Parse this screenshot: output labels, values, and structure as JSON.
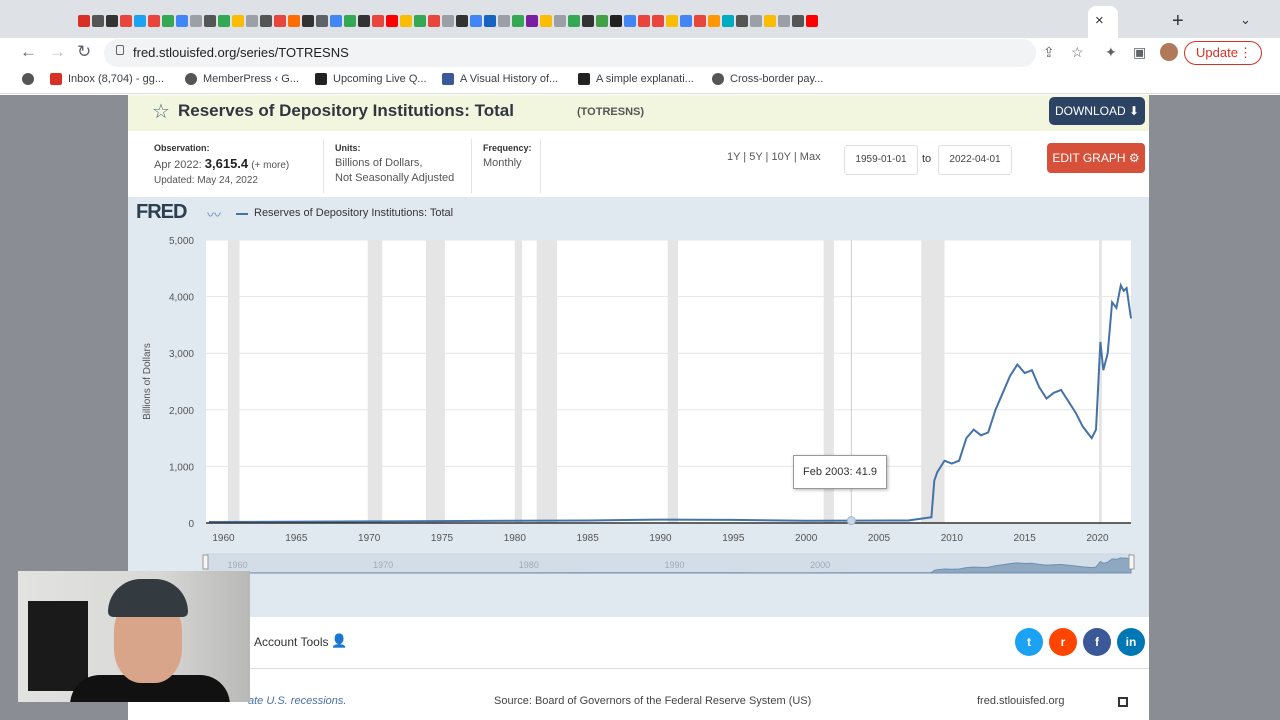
{
  "browser": {
    "url": "fred.stlouisfed.org/series/TOTRESNS",
    "update_label": "Update",
    "update_dots": "⋮",
    "tab_close": "×",
    "new_tab": "+",
    "tab_icons": [
      "#d93025",
      "#555",
      "#333",
      "#e8453c",
      "#1da1f2",
      "#e8453c",
      "#34a853",
      "#4285f4",
      "#9aa0a6",
      "#555",
      "#34a853",
      "#fbbc04",
      "#9aa0a6",
      "#555",
      "#e8453c",
      "#ff6d00",
      "#333",
      "#5f6368",
      "#4285f4",
      "#34a853",
      "#333",
      "#e8453c",
      "#ff0000",
      "#fbbc04",
      "#34a853",
      "#e8453c",
      "#9aa0a6",
      "#333",
      "#4285f4",
      "#1565c0",
      "#9aa0a6",
      "#34a853",
      "#7b1fa2",
      "#fbbc04",
      "#9aa0a6",
      "#34a853",
      "#333",
      "#43a047",
      "#222",
      "#4285f4",
      "#e8453c",
      "#e8453c",
      "#fbbc04",
      "#4285f4",
      "#e8453c",
      "#ff9800",
      "#00acc1",
      "#555",
      "#9aa0a6",
      "#fbbc04",
      "#9aa0a6",
      "#555",
      "#ff0000"
    ]
  },
  "bookmarks": [
    {
      "label": "Inbox (8,704) - gg...",
      "color": "#d93025"
    },
    {
      "label": "MemberPress ‹ G...",
      "color": "#555"
    },
    {
      "label": "Upcoming Live Q...",
      "color": "#222"
    },
    {
      "label": "A Visual History of...",
      "color": "#3b5998"
    },
    {
      "label": "A simple explanati...",
      "color": "#222"
    },
    {
      "label": "Cross-border pay...",
      "color": "#555"
    }
  ],
  "header": {
    "title": "Reserves of Depository Institutions: Total",
    "series_id": "(TOTRESNS)",
    "download_label": "DOWNLOAD ⬇"
  },
  "meta": {
    "observation_label": "Observation:",
    "observation_period": "Apr 2022:",
    "observation_value": "3,615.4",
    "observation_more": "(+ more)",
    "updated": "Updated: May 24, 2022",
    "units_label": "Units:",
    "units_line1": "Billions of Dollars,",
    "units_line2": "Not Seasonally Adjusted",
    "frequency_label": "Frequency:",
    "frequency_value": "Monthly"
  },
  "range": {
    "buttons": "1Y | 5Y | 10Y | Max",
    "start_date": "1959-01-01",
    "to_label": "to",
    "end_date": "2022-04-01",
    "edit_label": "EDIT GRAPH ⚙"
  },
  "graph": {
    "logo": "FRED",
    "legend": "Reserves of Depository Institutions: Total",
    "tooltip": "Feb 2003: 41.9",
    "shade_note": "ate U.S. recessions.",
    "source": "Source: Board of Governors of the Federal Reserve System (US)",
    "site": "fred.stlouisfed.org"
  },
  "chart_data": {
    "type": "line",
    "title": "",
    "ylabel": "Billions of Dollars",
    "xlabel": "",
    "xlim": [
      1958.8,
      2022.3
    ],
    "ylim": [
      0,
      5000
    ],
    "yticks": [
      0,
      1000,
      2000,
      3000,
      4000,
      5000
    ],
    "ytick_labels": [
      "0",
      "1,000",
      "2,000",
      "3,000",
      "4,000",
      "5,000"
    ],
    "xticks": [
      1960,
      1965,
      1970,
      1975,
      1980,
      1985,
      1990,
      1995,
      2000,
      2005,
      2010,
      2015,
      2020
    ],
    "navigator_labels": [
      "1960",
      "1970",
      "1980",
      "1990",
      "2000"
    ],
    "navigator_ticks": [
      1960,
      1970,
      1980,
      1990,
      2000
    ],
    "grid": true,
    "recessions": [
      [
        1960.3,
        1961.1
      ],
      [
        1969.9,
        1970.9
      ],
      [
        1973.9,
        1975.2
      ],
      [
        1980.0,
        1980.5
      ],
      [
        1981.5,
        1982.9
      ],
      [
        1990.5,
        1991.2
      ],
      [
        2001.2,
        2001.9
      ],
      [
        2007.9,
        2009.5
      ],
      [
        2020.1,
        2020.3
      ]
    ],
    "series": [
      {
        "name": "Reserves of Depository Institutions: Total",
        "color": "#4572a7",
        "x": [
          1959,
          1970,
          1980,
          1985,
          1990,
          1995,
          2000,
          2003.1,
          2007,
          2008.6,
          2008.8,
          2009,
          2009.5,
          2010,
          2010.5,
          2011,
          2011.5,
          2012,
          2012.5,
          2013,
          2013.5,
          2014,
          2014.5,
          2015,
          2015.5,
          2016,
          2016.5,
          2017,
          2017.5,
          2018,
          2018.5,
          2019,
          2019.6,
          2019.9,
          2020.2,
          2020.4,
          2020.7,
          2021,
          2021.3,
          2021.6,
          2021.8,
          2022,
          2022.3
        ],
        "values": [
          18,
          28,
          40,
          45,
          60,
          55,
          40,
          41.9,
          45,
          100,
          750,
          900,
          1100,
          1050,
          1100,
          1500,
          1650,
          1550,
          1600,
          2000,
          2300,
          2600,
          2800,
          2650,
          2700,
          2400,
          2200,
          2300,
          2350,
          2150,
          1950,
          1700,
          1500,
          1650,
          3200,
          2700,
          3000,
          3900,
          3800,
          4200,
          4100,
          4150,
          3615
        ]
      }
    ]
  },
  "footer": {
    "account_tools": "Account Tools",
    "social": [
      {
        "name": "twitter",
        "glyph": "t",
        "color": "#1da1f2"
      },
      {
        "name": "reddit",
        "glyph": "r",
        "color": "#ff4500"
      },
      {
        "name": "facebook",
        "glyph": "f",
        "color": "#3b5998"
      },
      {
        "name": "linkedin",
        "glyph": "in",
        "color": "#0077b5"
      }
    ]
  }
}
